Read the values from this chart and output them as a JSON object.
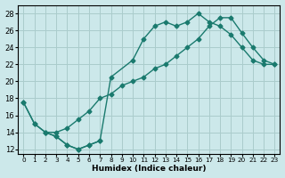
{
  "xlabel": "Humidex (Indice chaleur)",
  "background_color": "#cce8ea",
  "grid_color": "#aacccc",
  "line_color": "#1a7a6e",
  "xlim": [
    -0.5,
    23.5
  ],
  "ylim": [
    11.5,
    29.0
  ],
  "xticks": [
    0,
    1,
    2,
    3,
    4,
    5,
    6,
    7,
    8,
    9,
    10,
    11,
    12,
    13,
    14,
    15,
    16,
    17,
    18,
    19,
    20,
    21,
    22,
    23
  ],
  "yticks": [
    12,
    14,
    16,
    18,
    20,
    22,
    24,
    26,
    28
  ],
  "curve_upper_x": [
    0,
    1,
    2,
    3,
    4,
    5,
    6,
    7,
    8,
    10,
    11,
    12,
    13,
    14,
    15,
    16,
    17,
    18,
    19,
    20,
    21,
    22,
    23
  ],
  "curve_upper_y": [
    17.5,
    15.0,
    14.0,
    13.5,
    12.5,
    12.0,
    12.5,
    13.0,
    20.5,
    22.5,
    25.0,
    26.5,
    27.0,
    26.5,
    27.0,
    28.0,
    27.0,
    26.5,
    25.5,
    24.0,
    22.5,
    22.0,
    22.0
  ],
  "curve_lower_x": [
    0,
    1,
    2,
    3,
    4,
    5,
    6,
    7
  ],
  "curve_lower_y": [
    17.5,
    15.0,
    14.0,
    13.5,
    12.5,
    12.0,
    12.5,
    13.0
  ],
  "curve_linear_x": [
    2,
    3,
    4,
    5,
    6,
    7,
    8,
    9,
    10,
    11,
    12,
    13,
    14,
    15,
    16,
    17,
    18,
    19,
    20,
    21,
    22,
    23
  ],
  "curve_linear_y": [
    14.0,
    14.0,
    14.5,
    15.5,
    16.5,
    18.0,
    18.5,
    19.5,
    20.0,
    20.5,
    21.5,
    22.0,
    23.0,
    24.0,
    25.0,
    26.5,
    27.5,
    27.5,
    25.7,
    24.0,
    22.5,
    22.0
  ]
}
